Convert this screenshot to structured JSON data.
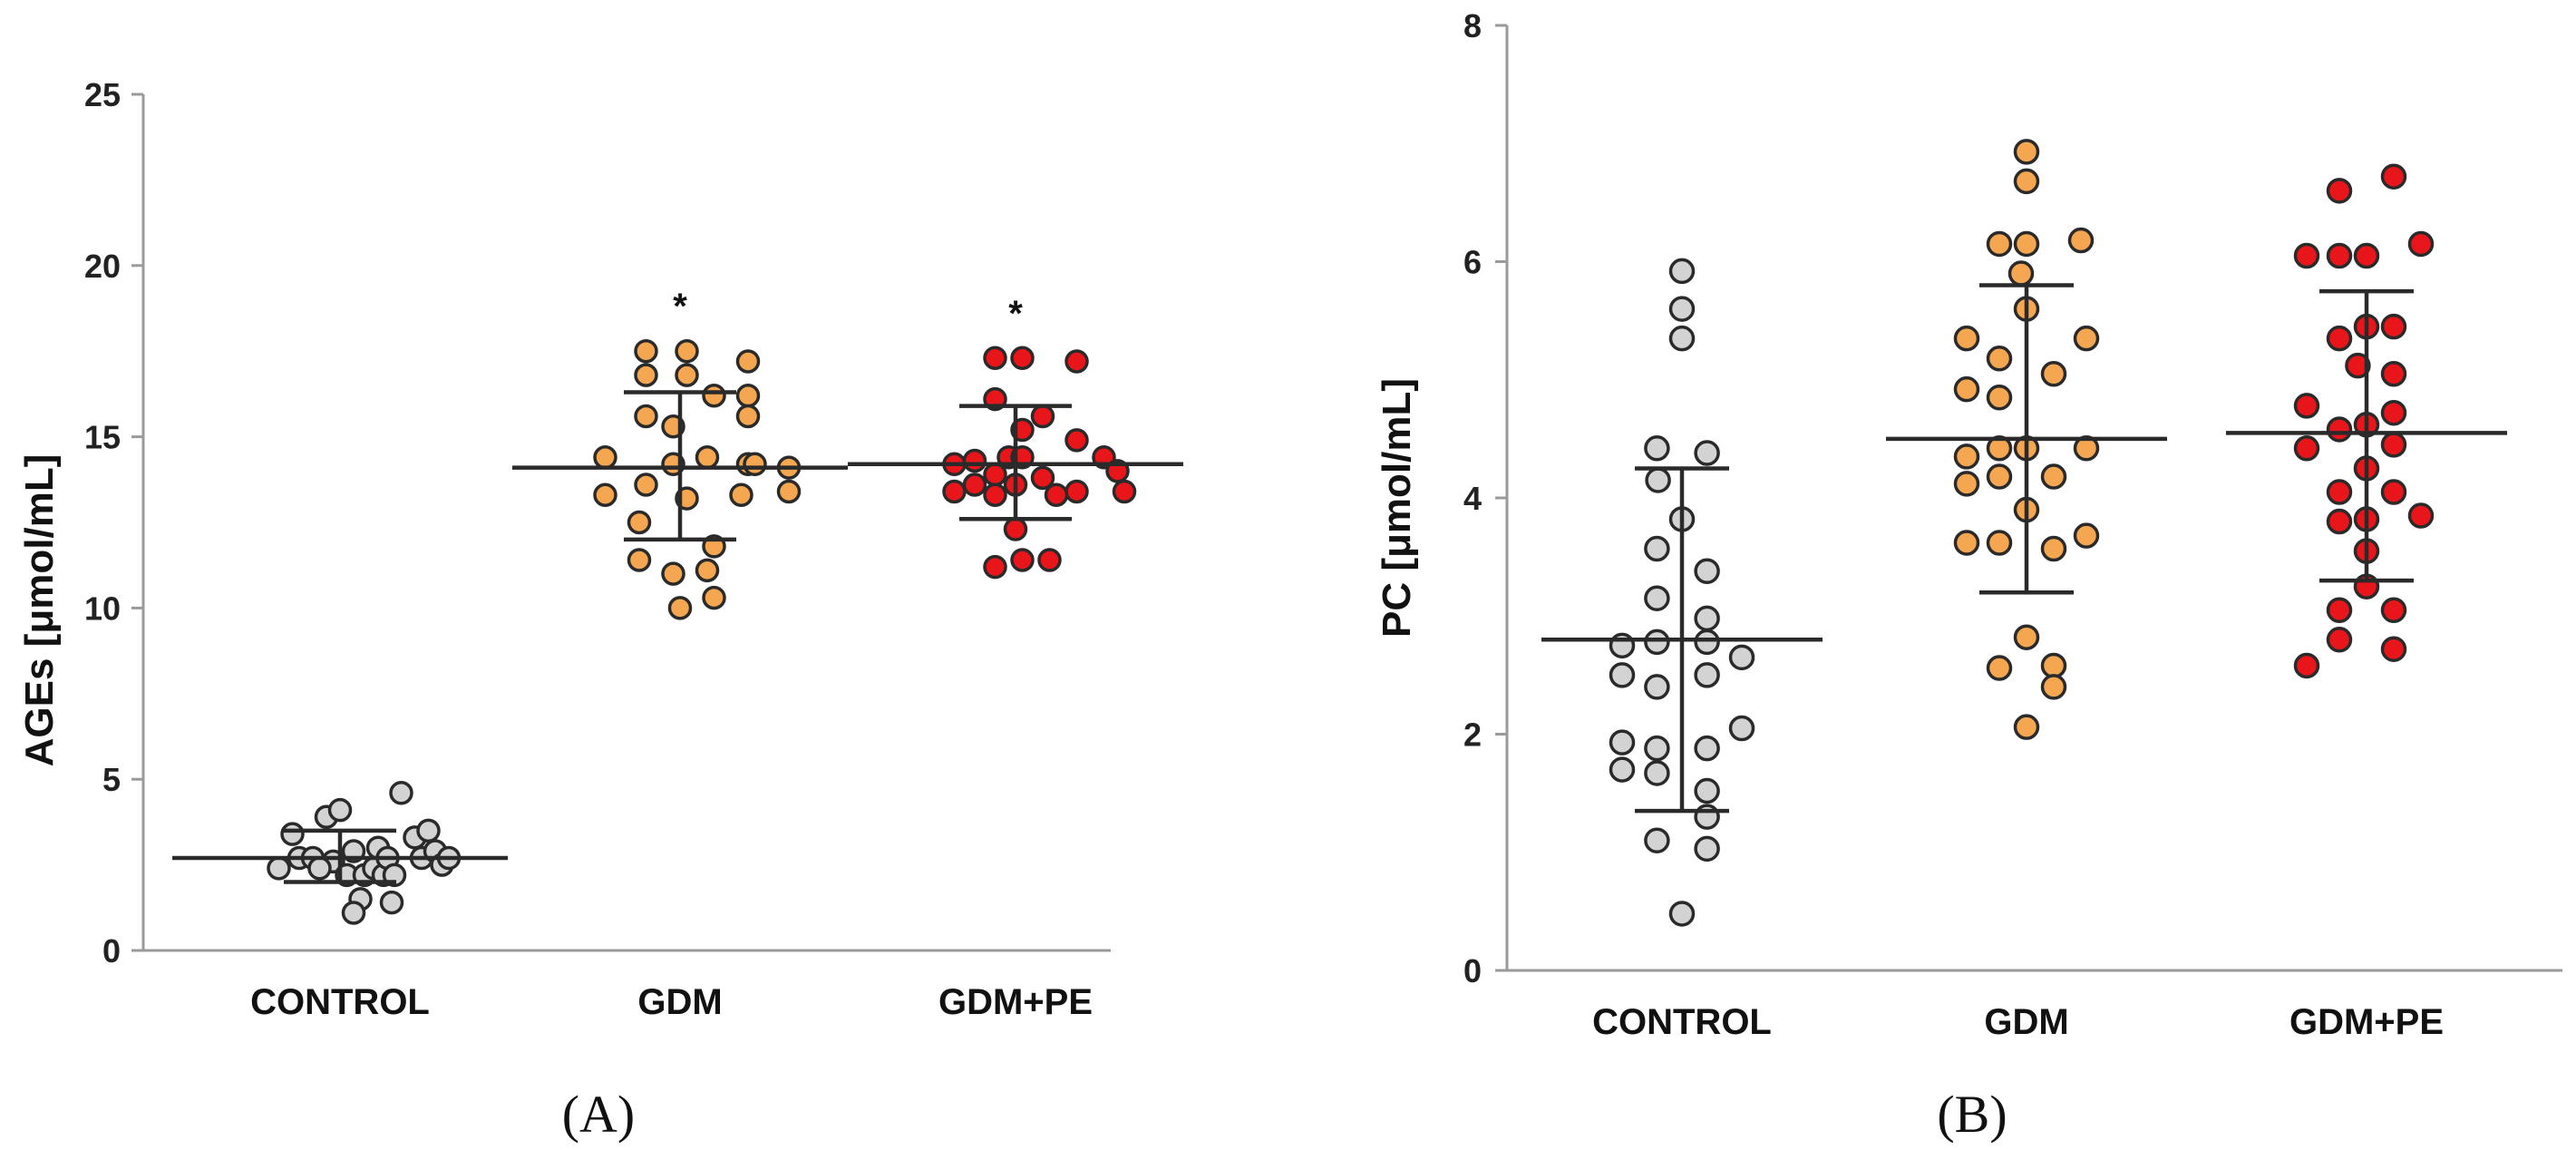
{
  "chart_data": [
    {
      "panel": "(A)",
      "type": "scatter",
      "ylabel": "AGEs [μmol/mL]",
      "ylim": [
        0,
        25
      ],
      "yticks": [
        "0",
        "5",
        "10",
        "15",
        "20",
        "25"
      ],
      "categories": [
        "CONTROL",
        "GDM",
        "GDM+PE"
      ],
      "significance": [
        "",
        "*",
        "*"
      ],
      "colors": [
        "#d3d3d3",
        "#f5a650",
        "#e8161a"
      ],
      "series": [
        {
          "name": "CONTROL",
          "mean": 2.7,
          "sd_low": 2.0,
          "sd_high": 3.5,
          "points": [
            {
              "x": -0.45,
              "y": 2.4
            },
            {
              "x": -0.35,
              "y": 3.4
            },
            {
              "x": -0.3,
              "y": 2.7
            },
            {
              "x": -0.2,
              "y": 2.7
            },
            {
              "x": -0.1,
              "y": 3.9
            },
            {
              "x": -0.05,
              "y": 2.6
            },
            {
              "x": 0.0,
              "y": 4.1
            },
            {
              "x": 0.05,
              "y": 2.2
            },
            {
              "x": -0.15,
              "y": 2.4
            },
            {
              "x": 0.1,
              "y": 2.9
            },
            {
              "x": 0.15,
              "y": 1.5
            },
            {
              "x": 0.18,
              "y": 2.2
            },
            {
              "x": 0.1,
              "y": 1.1
            },
            {
              "x": 0.25,
              "y": 2.4
            },
            {
              "x": 0.28,
              "y": 3.0
            },
            {
              "x": 0.32,
              "y": 2.2
            },
            {
              "x": 0.38,
              "y": 1.4
            },
            {
              "x": 0.35,
              "y": 2.7
            },
            {
              "x": 0.4,
              "y": 2.2
            },
            {
              "x": 0.45,
              "y": 4.6
            },
            {
              "x": 0.55,
              "y": 3.3
            },
            {
              "x": 0.6,
              "y": 2.7
            },
            {
              "x": 0.65,
              "y": 3.5
            },
            {
              "x": 0.7,
              "y": 2.9
            },
            {
              "x": 0.75,
              "y": 2.5
            },
            {
              "x": 0.8,
              "y": 2.7
            }
          ]
        },
        {
          "name": "GDM",
          "mean": 14.1,
          "sd_low": 12.0,
          "sd_high": 16.3,
          "points": [
            {
              "x": -0.55,
              "y": 14.4
            },
            {
              "x": -0.55,
              "y": 13.3
            },
            {
              "x": -0.25,
              "y": 17.5
            },
            {
              "x": -0.25,
              "y": 16.8
            },
            {
              "x": -0.25,
              "y": 15.6
            },
            {
              "x": -0.25,
              "y": 13.6
            },
            {
              "x": -0.3,
              "y": 12.5
            },
            {
              "x": -0.3,
              "y": 11.4
            },
            {
              "x": -0.05,
              "y": 15.3
            },
            {
              "x": -0.05,
              "y": 14.2
            },
            {
              "x": -0.05,
              "y": 11.0
            },
            {
              "x": 0.05,
              "y": 17.5
            },
            {
              "x": 0.05,
              "y": 16.8
            },
            {
              "x": 0.05,
              "y": 13.2
            },
            {
              "x": 0.0,
              "y": 10.0
            },
            {
              "x": 0.2,
              "y": 14.4
            },
            {
              "x": 0.25,
              "y": 16.2
            },
            {
              "x": 0.25,
              "y": 11.8
            },
            {
              "x": 0.2,
              "y": 11.1
            },
            {
              "x": 0.25,
              "y": 10.3
            },
            {
              "x": 0.5,
              "y": 17.2
            },
            {
              "x": 0.5,
              "y": 16.2
            },
            {
              "x": 0.5,
              "y": 15.6
            },
            {
              "x": 0.5,
              "y": 14.2
            },
            {
              "x": 0.45,
              "y": 13.3
            },
            {
              "x": 0.55,
              "y": 14.2
            },
            {
              "x": 0.8,
              "y": 14.1
            },
            {
              "x": 0.8,
              "y": 13.4
            }
          ]
        },
        {
          "name": "GDM+PE",
          "mean": 14.2,
          "sd_low": 12.6,
          "sd_high": 15.9,
          "points": [
            {
              "x": -0.45,
              "y": 14.2
            },
            {
              "x": -0.45,
              "y": 13.4
            },
            {
              "x": -0.3,
              "y": 14.3
            },
            {
              "x": -0.3,
              "y": 13.6
            },
            {
              "x": -0.15,
              "y": 17.3
            },
            {
              "x": -0.15,
              "y": 16.1
            },
            {
              "x": -0.15,
              "y": 13.9
            },
            {
              "x": -0.15,
              "y": 13.3
            },
            {
              "x": -0.05,
              "y": 14.4
            },
            {
              "x": 0.0,
              "y": 13.6
            },
            {
              "x": 0.05,
              "y": 17.3
            },
            {
              "x": 0.05,
              "y": 15.2
            },
            {
              "x": 0.05,
              "y": 14.4
            },
            {
              "x": 0.0,
              "y": 12.3
            },
            {
              "x": -0.15,
              "y": 11.2
            },
            {
              "x": 0.05,
              "y": 11.4
            },
            {
              "x": 0.2,
              "y": 15.6
            },
            {
              "x": 0.2,
              "y": 13.8
            },
            {
              "x": 0.25,
              "y": 11.4
            },
            {
              "x": 0.45,
              "y": 17.2
            },
            {
              "x": 0.45,
              "y": 14.9
            },
            {
              "x": 0.45,
              "y": 13.4
            },
            {
              "x": 0.65,
              "y": 14.4
            },
            {
              "x": 0.75,
              "y": 14.0
            },
            {
              "x": 0.8,
              "y": 13.4
            },
            {
              "x": 0.3,
              "y": 13.3
            }
          ]
        }
      ]
    },
    {
      "panel": "(B)",
      "type": "scatter",
      "ylabel": "PC [μmol/mL]",
      "ylim": [
        0,
        8
      ],
      "yticks": [
        "0",
        "2",
        "4",
        "6",
        "8"
      ],
      "categories": [
        "CONTROL",
        "GDM",
        "GDM+PE"
      ],
      "significance": [
        "",
        "",
        ""
      ],
      "colors": [
        "#d3d3d3",
        "#f5a650",
        "#e8161a"
      ],
      "series": [
        {
          "name": "CONTROL",
          "mean": 2.8,
          "sd_low": 1.35,
          "sd_high": 4.25,
          "points": [
            {
              "x": 0.0,
              "y": 5.92
            },
            {
              "x": 0.0,
              "y": 5.6
            },
            {
              "x": 0.0,
              "y": 5.35
            },
            {
              "x": -0.23,
              "y": 4.42
            },
            {
              "x": 0.23,
              "y": 4.38
            },
            {
              "x": -0.22,
              "y": 4.15
            },
            {
              "x": 0.0,
              "y": 3.82
            },
            {
              "x": -0.23,
              "y": 3.57
            },
            {
              "x": 0.23,
              "y": 3.38
            },
            {
              "x": -0.23,
              "y": 3.15
            },
            {
              "x": 0.23,
              "y": 2.98
            },
            {
              "x": -0.55,
              "y": 2.75
            },
            {
              "x": -0.23,
              "y": 2.78
            },
            {
              "x": 0.23,
              "y": 2.78
            },
            {
              "x": 0.55,
              "y": 2.65
            },
            {
              "x": -0.55,
              "y": 2.5
            },
            {
              "x": 0.23,
              "y": 2.5
            },
            {
              "x": -0.23,
              "y": 2.4
            },
            {
              "x": 0.55,
              "y": 2.05
            },
            {
              "x": -0.55,
              "y": 1.93
            },
            {
              "x": -0.23,
              "y": 1.88
            },
            {
              "x": 0.23,
              "y": 1.88
            },
            {
              "x": -0.55,
              "y": 1.7
            },
            {
              "x": -0.23,
              "y": 1.67
            },
            {
              "x": 0.23,
              "y": 1.52
            },
            {
              "x": 0.23,
              "y": 1.3
            },
            {
              "x": -0.23,
              "y": 1.1
            },
            {
              "x": 0.23,
              "y": 1.03
            },
            {
              "x": 0.0,
              "y": 0.48
            }
          ]
        },
        {
          "name": "GDM",
          "mean": 4.5,
          "sd_low": 3.2,
          "sd_high": 5.8,
          "points": [
            {
              "x": 0.0,
              "y": 6.93
            },
            {
              "x": 0.0,
              "y": 6.68
            },
            {
              "x": -0.25,
              "y": 6.15
            },
            {
              "x": 0.0,
              "y": 6.15
            },
            {
              "x": 0.5,
              "y": 6.18
            },
            {
              "x": -0.05,
              "y": 5.9
            },
            {
              "x": 0.0,
              "y": 5.6
            },
            {
              "x": -0.55,
              "y": 5.35
            },
            {
              "x": 0.55,
              "y": 5.35
            },
            {
              "x": -0.25,
              "y": 5.18
            },
            {
              "x": 0.25,
              "y": 5.05
            },
            {
              "x": -0.55,
              "y": 4.92
            },
            {
              "x": -0.25,
              "y": 4.85
            },
            {
              "x": -0.55,
              "y": 4.35
            },
            {
              "x": -0.25,
              "y": 4.42
            },
            {
              "x": 0.0,
              "y": 4.42
            },
            {
              "x": 0.55,
              "y": 4.42
            },
            {
              "x": -0.25,
              "y": 4.18
            },
            {
              "x": 0.25,
              "y": 4.18
            },
            {
              "x": -0.55,
              "y": 4.12
            },
            {
              "x": 0.0,
              "y": 3.9
            },
            {
              "x": -0.55,
              "y": 3.62
            },
            {
              "x": -0.25,
              "y": 3.62
            },
            {
              "x": 0.25,
              "y": 3.57
            },
            {
              "x": 0.55,
              "y": 3.68
            },
            {
              "x": 0.0,
              "y": 2.82
            },
            {
              "x": -0.25,
              "y": 2.56
            },
            {
              "x": 0.25,
              "y": 2.58
            },
            {
              "x": 0.25,
              "y": 2.4
            },
            {
              "x": 0.0,
              "y": 2.06
            }
          ]
        },
        {
          "name": "GDM+PE",
          "mean": 4.55,
          "sd_low": 3.3,
          "sd_high": 5.75,
          "points": [
            {
              "x": 0.25,
              "y": 6.72
            },
            {
              "x": -0.25,
              "y": 6.6
            },
            {
              "x": 0.5,
              "y": 6.15
            },
            {
              "x": -0.55,
              "y": 6.05
            },
            {
              "x": -0.25,
              "y": 6.05
            },
            {
              "x": 0.0,
              "y": 6.05
            },
            {
              "x": 0.0,
              "y": 5.45
            },
            {
              "x": -0.25,
              "y": 5.35
            },
            {
              "x": 0.25,
              "y": 5.45
            },
            {
              "x": -0.08,
              "y": 5.12
            },
            {
              "x": 0.25,
              "y": 5.05
            },
            {
              "x": -0.55,
              "y": 4.78
            },
            {
              "x": 0.25,
              "y": 4.72
            },
            {
              "x": -0.25,
              "y": 4.58
            },
            {
              "x": 0.0,
              "y": 4.62
            },
            {
              "x": -0.55,
              "y": 4.42
            },
            {
              "x": 0.25,
              "y": 4.45
            },
            {
              "x": 0.0,
              "y": 4.25
            },
            {
              "x": -0.25,
              "y": 4.05
            },
            {
              "x": 0.25,
              "y": 4.05
            },
            {
              "x": -0.25,
              "y": 3.8
            },
            {
              "x": 0.0,
              "y": 3.82
            },
            {
              "x": 0.5,
              "y": 3.85
            },
            {
              "x": 0.0,
              "y": 3.55
            },
            {
              "x": 0.0,
              "y": 3.25
            },
            {
              "x": -0.25,
              "y": 3.05
            },
            {
              "x": 0.25,
              "y": 3.05
            },
            {
              "x": -0.55,
              "y": 2.58
            },
            {
              "x": -0.25,
              "y": 2.8
            },
            {
              "x": 0.25,
              "y": 2.72
            }
          ]
        }
      ]
    }
  ]
}
